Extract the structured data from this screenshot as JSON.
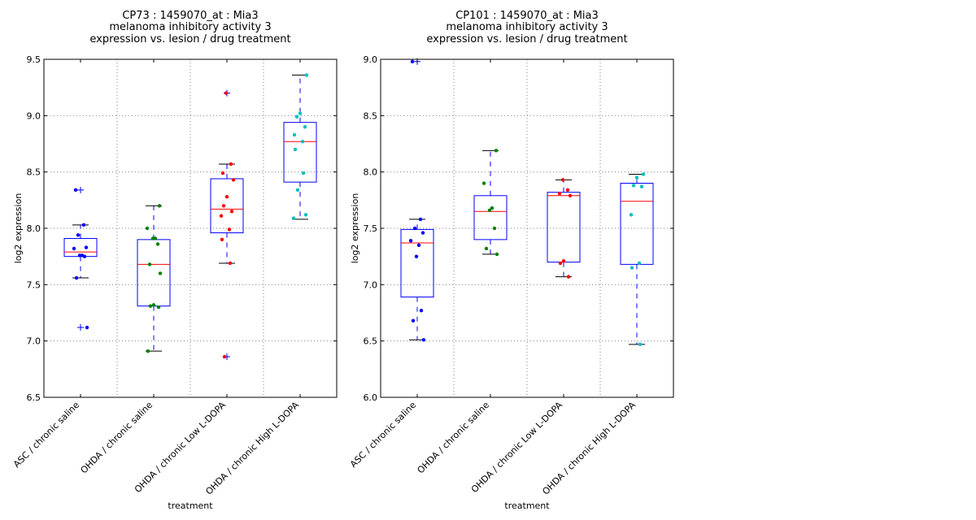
{
  "chart_data": [
    {
      "type": "box",
      "title": [
        "CP73 : 1459070_at : Mia3",
        "melanoma inhibitory activity 3",
        "expression vs. lesion / drug treatment"
      ],
      "xlabel": "treatment",
      "ylabel": "log2 expression",
      "ylim": [
        6.5,
        9.5
      ],
      "yticks": [
        "6.5",
        "7.0",
        "7.5",
        "8.0",
        "8.5",
        "9.0",
        "9.5"
      ],
      "grid": true,
      "categories": [
        "ASC / chronic saline",
        "OHDA / chronic saline",
        "OHDA / chronic Low L-DOPA",
        "OHDA / chronic High L-DOPA"
      ],
      "groups": [
        {
          "name": "ASC / chronic saline",
          "color": "#0000ff",
          "q1": 7.75,
          "median": 7.79,
          "q3": 7.91,
          "whisker_low": 7.56,
          "whisker_high": 8.03,
          "fliers": [
            8.34,
            7.12
          ],
          "points": [
            8.34,
            8.03,
            7.94,
            7.83,
            7.82,
            7.76,
            7.76,
            7.75,
            7.56,
            7.12
          ]
        },
        {
          "name": "OHDA / chronic saline",
          "color": "#008000",
          "q1": 7.31,
          "median": 7.68,
          "q3": 7.9,
          "whisker_low": 6.91,
          "whisker_high": 8.2,
          "fliers": [],
          "points": [
            8.2,
            8.0,
            7.91,
            7.91,
            7.86,
            7.68,
            7.6,
            7.32,
            7.31,
            7.3,
            6.91
          ]
        },
        {
          "name": "OHDA / chronic Low L-DOPA",
          "color": "#ff0000",
          "q1": 7.96,
          "median": 8.17,
          "q3": 8.44,
          "whisker_low": 7.69,
          "whisker_high": 8.57,
          "fliers": [
            9.2,
            6.86
          ],
          "points": [
            9.2,
            8.57,
            8.49,
            8.43,
            8.28,
            8.2,
            8.15,
            8.11,
            7.99,
            7.9,
            7.69,
            6.86
          ]
        },
        {
          "name": "OHDA / chronic High L-DOPA",
          "color": "#00bfbf",
          "q1": 8.41,
          "median": 8.77,
          "q3": 8.94,
          "whisker_low": 8.08,
          "whisker_high": 9.36,
          "fliers": [],
          "points": [
            9.36,
            9.02,
            8.99,
            8.9,
            8.83,
            8.77,
            8.7,
            8.49,
            8.34,
            8.12,
            8.09
          ]
        }
      ]
    },
    {
      "type": "box",
      "title": [
        "CP101 : 1459070_at : Mia3",
        "melanoma inhibitory activity 3",
        "expression vs. lesion / drug treatment"
      ],
      "xlabel": "treatment",
      "ylabel": "log2 expression",
      "ylim": [
        6.0,
        9.0
      ],
      "yticks": [
        "6.0",
        "6.5",
        "7.0",
        "7.5",
        "8.0",
        "8.5",
        "9.0"
      ],
      "grid": true,
      "categories": [
        "ASC / chronic saline",
        "OHDA / chronic saline",
        "OHDA / chronic Low L-DOPA",
        "OHDA / chronic High L-DOPA"
      ],
      "groups": [
        {
          "name": "ASC / chronic saline",
          "color": "#0000ff",
          "q1": 6.89,
          "median": 7.37,
          "q3": 7.49,
          "whisker_low": 6.51,
          "whisker_high": 7.58,
          "fliers": [
            8.98
          ],
          "points": [
            8.98,
            7.58,
            7.5,
            7.46,
            7.39,
            7.35,
            7.25,
            6.77,
            6.68,
            6.51
          ]
        },
        {
          "name": "OHDA / chronic saline",
          "color": "#008000",
          "q1": 7.4,
          "median": 7.65,
          "q3": 7.79,
          "whisker_low": 7.27,
          "whisker_high": 8.19,
          "fliers": [],
          "points": [
            8.19,
            7.9,
            7.68,
            7.66,
            7.5,
            7.32,
            7.27
          ]
        },
        {
          "name": "OHDA / chronic Low L-DOPA",
          "color": "#ff0000",
          "q1": 7.2,
          "median": 7.79,
          "q3": 7.82,
          "whisker_low": 7.07,
          "whisker_high": 7.93,
          "fliers": [],
          "points": [
            7.93,
            7.84,
            7.81,
            7.79,
            7.21,
            7.19,
            7.07
          ]
        },
        {
          "name": "OHDA / chronic High L-DOPA",
          "color": "#00bfbf",
          "q1": 7.18,
          "median": 7.74,
          "q3": 7.9,
          "whisker_low": 6.47,
          "whisker_high": 7.98,
          "fliers": [],
          "points": [
            7.98,
            7.95,
            7.88,
            7.87,
            7.62,
            7.19,
            7.15,
            6.47
          ]
        }
      ]
    }
  ]
}
